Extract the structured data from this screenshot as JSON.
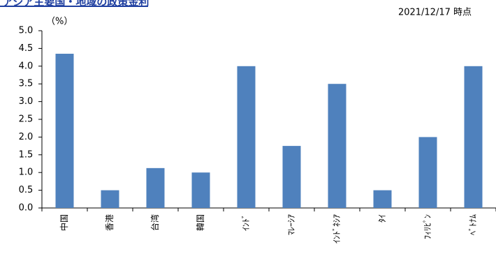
{
  "header": {
    "title": "アジア主要国・地域の政策金利",
    "unit": "（%）",
    "as_of": "2021/12/17 時点"
  },
  "colors": {
    "bar": "#4f81bd",
    "axis": "#000000",
    "title": "#1f3fa0"
  },
  "chart_data": {
    "type": "bar",
    "title": "",
    "xlabel": "",
    "ylabel": "（%）",
    "ylim": [
      0,
      5
    ],
    "yticks": [
      "0.0",
      "0.5",
      "1.0",
      "1.5",
      "2.0",
      "2.5",
      "3.0",
      "3.5",
      "4.0",
      "4.5",
      "5.0"
    ],
    "grid": false,
    "legend": "none",
    "categories": [
      "中国",
      "香港",
      "台湾",
      "韓国",
      "ｲﾝﾄﾞ",
      "ﾏﾚｰｼｱ",
      "ｲﾝﾄﾞﾈｼｱ",
      "ﾀｲ",
      "ﾌｨﾘﾋﾟﾝ",
      "ﾍﾞﾄﾅﾑ"
    ],
    "values": [
      4.35,
      0.5,
      1.125,
      1.0,
      4.0,
      1.75,
      3.5,
      0.5,
      2.0,
      4.0
    ]
  }
}
